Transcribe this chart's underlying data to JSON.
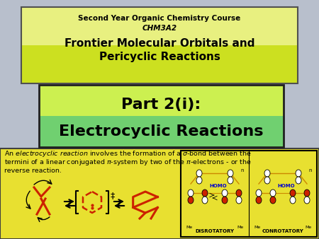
{
  "bg_color": "#b8bfcc",
  "header_bg_top": "#e8f080",
  "header_bg_bot": "#c8e020",
  "header_border": "#505050",
  "header_line1": "Second Year Organic Chemistry Course",
  "header_line2": "CHM3A2",
  "header_line3": "Frontier Molecular Orbitals and",
  "header_line4": "Pericyclic Reactions",
  "part_box_bg_top": "#d0f060",
  "part_box_bg_bot": "#60d060",
  "part_box_border": "#202020",
  "part_title1": "Part 2(i):",
  "part_title2": "Electrocyclic Reactions",
  "bottom_box_bg": "#e8e030",
  "bottom_box_border": "#404040",
  "red": "#cc2200",
  "blue": "#0000cc",
  "figsize": [
    4.5,
    3.38
  ],
  "dpi": 100
}
